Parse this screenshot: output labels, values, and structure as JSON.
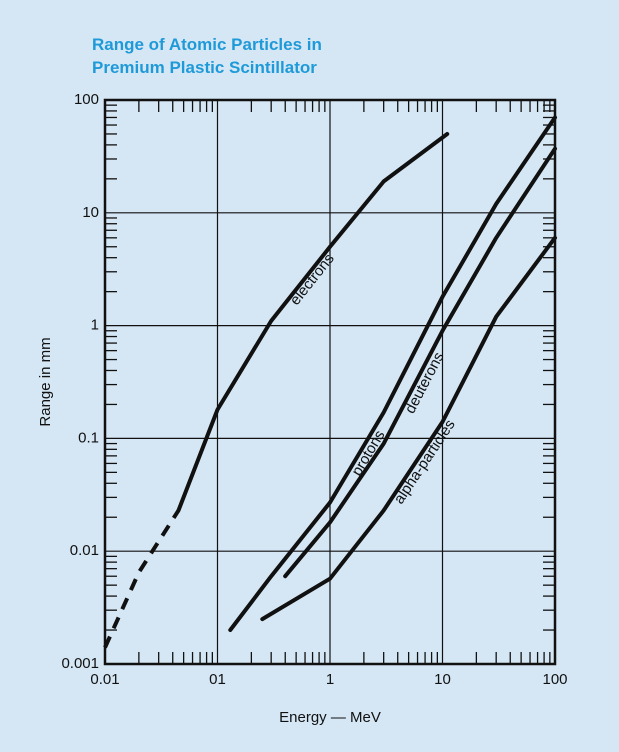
{
  "chart_data": {
    "type": "line",
    "title": [
      "Range of Atomic Particles in",
      "Premium Plastic Scintillator"
    ],
    "x_label": "Energy — MeV",
    "y_label": "Range in mm",
    "log_x": true,
    "log_y": true,
    "grid": true,
    "minor_ticks": true,
    "xlim": [
      0.01,
      100
    ],
    "ylim": [
      0.001,
      100
    ],
    "xticks": [
      0.01,
      {
        "value": 0.1,
        "label": "01"
      },
      1,
      10,
      100
    ],
    "yticks": [
      0.001,
      0.01,
      0.1,
      1,
      10,
      100
    ],
    "series": [
      {
        "color": "#111111",
        "style": "dashed",
        "x": [
          0.01,
          0.02,
          0.045
        ],
        "values": [
          0.0014,
          0.0065,
          0.023
        ]
      },
      {
        "name": "electrons",
        "color": "#111111",
        "x": [
          0.045,
          0.1,
          0.3,
          1,
          3,
          11
        ],
        "values": [
          0.023,
          0.18,
          1.1,
          5,
          19,
          50
        ]
      },
      {
        "name": "protons",
        "color": "#111111",
        "x": [
          0.13,
          0.3,
          1,
          3,
          10,
          30,
          100
        ],
        "values": [
          0.002,
          0.006,
          0.027,
          0.17,
          1.8,
          12,
          70
        ]
      },
      {
        "name": "deuterons",
        "color": "#111111",
        "x": [
          0.4,
          1,
          3,
          10,
          30,
          100
        ],
        "values": [
          0.006,
          0.018,
          0.09,
          0.9,
          6,
          37
        ]
      },
      {
        "name": "alpha-particles",
        "color": "#111111",
        "x": [
          0.25,
          1,
          3,
          10,
          30,
          100
        ],
        "values": [
          0.0025,
          0.0057,
          0.023,
          0.14,
          1.2,
          6
        ]
      }
    ]
  }
}
